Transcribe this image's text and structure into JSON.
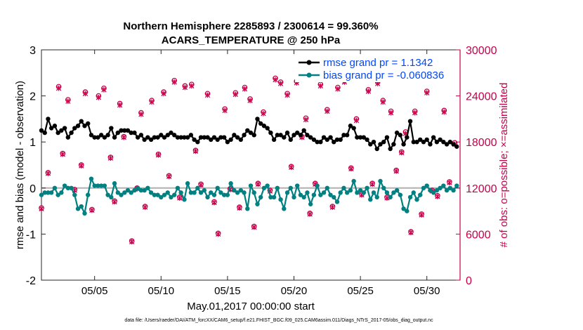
{
  "chart_data": {
    "type": "line",
    "title": "Northern Hemisphere 2285893 / 2300614 = 99.360%",
    "subtitle": "ACARS_TEMPERATURE @ 250 hPa",
    "xlabel": "May.01,2017 00:00:00 start",
    "ylabel": "rmse and bias (model - observation)",
    "y2label": "# of obs: o=possible; ×=assimilated",
    "footer": "data file: /Users/raeder/DAI/ATM_forcXX/CAM6_setup/f.e21.FHIST_BGC.f09_025.CAM6assim.011/Diags_NTrS_2017-05/obs_diag_output.nc",
    "xlim": [
      1,
      32.5
    ],
    "ylim": [
      -2,
      3
    ],
    "y2lim": [
      0,
      30000
    ],
    "x_ticks": [
      5,
      10,
      15,
      20,
      25,
      30
    ],
    "x_tick_labels": [
      "05/05",
      "05/10",
      "05/15",
      "05/20",
      "05/25",
      "05/30"
    ],
    "y_ticks": [
      -2,
      -1,
      0,
      1,
      2,
      3
    ],
    "y_tick_labels": [
      "-2",
      "-1",
      "0",
      "1",
      "2",
      "3"
    ],
    "y2_ticks": [
      0,
      6000,
      12000,
      18000,
      24000,
      30000
    ],
    "y2_tick_labels": [
      "0",
      "6000",
      "12000",
      "18000",
      "24000",
      "30000"
    ],
    "legend": {
      "position": "top-right",
      "entries": [
        "rmse grand pr = 1.1342",
        "bias grand pr = -0.060836"
      ]
    },
    "colors": {
      "rmse": "#000000",
      "bias": "#008080",
      "obs": "#c8004a",
      "zero_line": "#b0b0b0",
      "legend_text": "#0047ff"
    },
    "series": [
      {
        "name": "rmse",
        "x": [
          1.0,
          1.25,
          1.5,
          1.75,
          2.0,
          2.25,
          2.5,
          2.75,
          3.0,
          3.25,
          3.5,
          3.75,
          4.0,
          4.25,
          4.5,
          4.75,
          5.0,
          5.25,
          5.5,
          5.75,
          6.0,
          6.25,
          6.5,
          6.75,
          7.0,
          7.25,
          7.5,
          7.75,
          8.0,
          8.25,
          8.5,
          8.75,
          9.0,
          9.25,
          9.5,
          9.75,
          10.0,
          10.25,
          10.5,
          10.75,
          11.0,
          11.25,
          11.5,
          11.75,
          12.0,
          12.25,
          12.5,
          12.75,
          13.0,
          13.25,
          13.5,
          13.75,
          14.0,
          14.25,
          14.5,
          14.75,
          15.0,
          15.25,
          15.5,
          15.75,
          16.0,
          16.25,
          16.5,
          16.75,
          17.0,
          17.25,
          17.5,
          17.75,
          18.0,
          18.25,
          18.5,
          18.75,
          19.0,
          19.25,
          19.5,
          19.75,
          20.0,
          20.25,
          20.5,
          20.75,
          21.0,
          21.25,
          21.5,
          21.75,
          22.0,
          22.25,
          22.5,
          22.75,
          23.0,
          23.25,
          23.5,
          23.75,
          24.0,
          24.25,
          24.5,
          24.75,
          25.0,
          25.25,
          25.5,
          25.75,
          26.0,
          26.25,
          26.5,
          26.75,
          27.0,
          27.25,
          27.5,
          27.75,
          28.0,
          28.25,
          28.5,
          28.75,
          29.0,
          29.25,
          29.5,
          29.75,
          30.0,
          30.25,
          30.5,
          30.75,
          31.0,
          31.25,
          31.5,
          31.75,
          32.0,
          32.25
        ],
        "values": [
          1.25,
          1.2,
          1.5,
          1.3,
          1.35,
          1.2,
          1.25,
          1.3,
          1.1,
          1.2,
          1.3,
          1.35,
          1.45,
          1.35,
          1.4,
          1.15,
          1.1,
          1.1,
          1.15,
          1.1,
          1.15,
          1.3,
          1.1,
          1.2,
          1.25,
          1.25,
          1.25,
          1.2,
          1.2,
          1.1,
          1.15,
          1.05,
          1.1,
          1.05,
          1.1,
          1.1,
          1.15,
          1.1,
          1.15,
          1.2,
          1.15,
          1.1,
          1.1,
          1.1,
          1.1,
          1.15,
          1.05,
          1.0,
          1.1,
          1.1,
          1.1,
          1.05,
          1.1,
          1.05,
          1.1,
          1.1,
          1.0,
          1.05,
          1.15,
          1.1,
          1.05,
          1.15,
          1.25,
          1.2,
          1.15,
          1.5,
          1.4,
          1.35,
          1.3,
          1.2,
          1.05,
          1.15,
          1.15,
          1.1,
          1.2,
          1.05,
          1.15,
          1.2,
          1.15,
          1.25,
          1.15,
          1.1,
          1.05,
          1.0,
          1.0,
          1.1,
          1.05,
          1.1,
          1.0,
          1.05,
          1.05,
          1.15,
          1.15,
          1.35,
          1.3,
          1.1,
          1.1,
          1.1,
          1.05,
          0.95,
          1.0,
          0.85,
          0.95,
          1.0,
          1.1,
          0.85,
          0.95,
          1.2,
          1.15,
          0.95,
          1.1,
          1.45,
          1.0,
          1.0,
          1.05,
          1.0,
          1.05,
          0.95,
          1.1,
          1.0,
          1.05,
          1.0,
          0.95,
          1.0,
          0.95,
          0.9
        ]
      },
      {
        "name": "bias",
        "x": [
          1.0,
          1.25,
          1.5,
          1.75,
          2.0,
          2.25,
          2.5,
          2.75,
          3.0,
          3.25,
          3.5,
          3.75,
          4.0,
          4.25,
          4.5,
          4.75,
          5.0,
          5.25,
          5.5,
          5.75,
          6.0,
          6.25,
          6.5,
          6.75,
          7.0,
          7.25,
          7.5,
          7.75,
          8.0,
          8.25,
          8.5,
          8.75,
          9.0,
          9.25,
          9.5,
          9.75,
          10.0,
          10.25,
          10.5,
          10.75,
          11.0,
          11.25,
          11.5,
          11.75,
          12.0,
          12.25,
          12.5,
          12.75,
          13.0,
          13.25,
          13.5,
          13.75,
          14.0,
          14.25,
          14.5,
          14.75,
          15.0,
          15.25,
          15.5,
          15.75,
          16.0,
          16.25,
          16.5,
          16.75,
          17.0,
          17.25,
          17.5,
          17.75,
          18.0,
          18.25,
          18.5,
          18.75,
          19.0,
          19.25,
          19.5,
          19.75,
          20.0,
          20.25,
          20.5,
          20.75,
          21.0,
          21.25,
          21.5,
          21.75,
          22.0,
          22.25,
          22.5,
          22.75,
          23.0,
          23.25,
          23.5,
          23.75,
          24.0,
          24.25,
          24.5,
          24.75,
          25.0,
          25.25,
          25.5,
          25.75,
          26.0,
          26.25,
          26.5,
          26.75,
          27.0,
          27.25,
          27.5,
          27.75,
          28.0,
          28.25,
          28.5,
          28.75,
          29.0,
          29.25,
          29.5,
          29.75,
          30.0,
          30.25,
          30.5,
          30.75,
          31.0,
          31.25,
          31.5,
          31.75,
          32.0,
          32.25
        ],
        "values": [
          -0.15,
          -0.1,
          -0.1,
          -0.1,
          0.0,
          -0.15,
          -0.1,
          0.05,
          0.0,
          0.0,
          -0.15,
          -0.45,
          -0.4,
          -0.55,
          -0.15,
          0.2,
          0.05,
          0.05,
          0.05,
          0.05,
          -0.15,
          -0.2,
          0.1,
          -0.1,
          -0.15,
          -0.1,
          -0.05,
          -0.1,
          -0.05,
          0.0,
          -0.05,
          -0.05,
          0.0,
          -0.1,
          -0.15,
          -0.15,
          -0.2,
          -0.15,
          -0.1,
          -0.2,
          -0.15,
          0.0,
          -0.1,
          -0.25,
          0.1,
          -0.1,
          -0.1,
          0.0,
          -0.1,
          -0.05,
          -0.2,
          -0.1,
          -0.15,
          0.0,
          -0.1,
          -0.15,
          -0.15,
          0.1,
          -0.05,
          -0.1,
          -0.05,
          -0.1,
          -0.45,
          0.05,
          -0.1,
          -0.35,
          -0.2,
          0.0,
          0.05,
          -0.2,
          -0.2,
          0.0,
          -0.25,
          -0.45,
          -0.1,
          0.0,
          -0.2,
          0.05,
          -0.15,
          -0.2,
          -0.1,
          -0.35,
          -0.15,
          0.05,
          -0.15,
          -0.1,
          0.0,
          -0.15,
          -0.2,
          -0.3,
          -0.1,
          0.0,
          -0.1,
          -0.05,
          0.15,
          -0.1,
          -0.05,
          -0.1,
          0.0,
          -0.25,
          -0.1,
          -0.2,
          0.15,
          0.0,
          -0.1,
          -0.2,
          -0.1,
          -0.05,
          -0.15,
          -0.45,
          -0.5,
          -0.2,
          -0.1,
          -0.25,
          -0.15,
          0.0,
          0.05,
          -0.05,
          -0.1,
          -0.05,
          0.0,
          0.05,
          -0.05,
          0.0,
          -0.05,
          0.05
        ]
      },
      {
        "name": "obs_possible",
        "x": [
          1.0,
          1.5,
          2.3,
          2.6,
          3.0,
          3.5,
          4.0,
          4.3,
          4.8,
          5.3,
          5.7,
          6.2,
          6.5,
          6.9,
          7.2,
          7.8,
          8.2,
          8.5,
          8.8,
          9.3,
          9.8,
          10.2,
          10.6,
          11.0,
          11.4,
          11.8,
          12.3,
          12.6,
          13.0,
          13.5,
          14.0,
          14.3,
          14.8,
          15.2,
          15.6,
          15.9,
          16.3,
          16.7,
          17.0,
          17.3,
          17.7,
          18.2,
          18.6,
          19.0,
          19.5,
          19.8,
          20.2,
          20.6,
          20.9,
          21.2,
          21.6,
          22.0,
          22.5,
          22.9,
          23.3,
          23.8,
          24.3,
          24.7,
          25.1,
          25.6,
          25.9,
          26.3,
          26.7,
          27.0,
          27.3,
          27.7,
          28.1,
          28.4,
          28.8,
          29.1,
          29.6,
          30.0,
          30.4,
          30.8,
          31.3,
          31.7,
          32.1
        ],
        "values": [
          9400,
          14000,
          25200,
          16500,
          23500,
          11800,
          15000,
          24500,
          9200,
          24000,
          25000,
          16000,
          10300,
          23000,
          18700,
          5100,
          12000,
          21800,
          9600,
          23400,
          16400,
          24500,
          13600,
          26000,
          10800,
          25300,
          25500,
          16900,
          12500,
          24300,
          10200,
          6100,
          22300,
          11900,
          24400,
          9500,
          25100,
          23600,
          7000,
          12600,
          21900,
          11700,
          26300,
          25800,
          24300,
          14800,
          25900,
          18700,
          21100,
          8700,
          12600,
          25500,
          22200,
          9600,
          25100,
          26000,
          14600,
          21000,
          11200,
          24800,
          12600,
          25800,
          23400,
          10800,
          22000,
          14300,
          16700,
          19300,
          6300,
          22000,
          8600,
          24600,
          11700,
          11000,
          22100,
          12800,
          17900
        ]
      },
      {
        "name": "obs_assimilated",
        "x": [
          1.0,
          1.5,
          2.3,
          2.6,
          3.0,
          3.5,
          4.0,
          4.3,
          4.8,
          5.3,
          5.7,
          6.2,
          6.5,
          6.9,
          7.2,
          7.8,
          8.2,
          8.5,
          8.8,
          9.3,
          9.8,
          10.2,
          10.6,
          11.0,
          11.4,
          11.8,
          12.3,
          12.6,
          13.0,
          13.5,
          14.0,
          14.3,
          14.8,
          15.2,
          15.6,
          15.9,
          16.3,
          16.7,
          17.0,
          17.3,
          17.7,
          18.2,
          18.6,
          19.0,
          19.5,
          19.8,
          20.2,
          20.6,
          20.9,
          21.2,
          21.6,
          22.0,
          22.5,
          22.9,
          23.3,
          23.8,
          24.3,
          24.7,
          25.1,
          25.6,
          25.9,
          26.3,
          26.7,
          27.0,
          27.3,
          27.7,
          28.1,
          28.4,
          28.8,
          29.1,
          29.6,
          30.0,
          30.4,
          30.8,
          31.3,
          31.7,
          32.1
        ],
        "values": [
          9300,
          13900,
          25000,
          16400,
          23300,
          11700,
          14900,
          24300,
          9100,
          23800,
          24800,
          15900,
          10200,
          22800,
          18600,
          5000,
          11900,
          21600,
          9500,
          23200,
          16300,
          24300,
          13500,
          25800,
          10700,
          25100,
          25300,
          16800,
          12400,
          24100,
          10100,
          6000,
          22100,
          11800,
          24200,
          9400,
          24900,
          23400,
          6900,
          12500,
          21700,
          11600,
          26100,
          25600,
          24100,
          14700,
          25700,
          18600,
          20900,
          8600,
          12500,
          25300,
          22000,
          9500,
          24900,
          25800,
          14500,
          20800,
          11100,
          24600,
          12500,
          25600,
          23200,
          10700,
          21800,
          14200,
          16600,
          19100,
          6200,
          21800,
          8500,
          24400,
          11600,
          10900,
          21900,
          12700,
          17700
        ]
      }
    ]
  }
}
